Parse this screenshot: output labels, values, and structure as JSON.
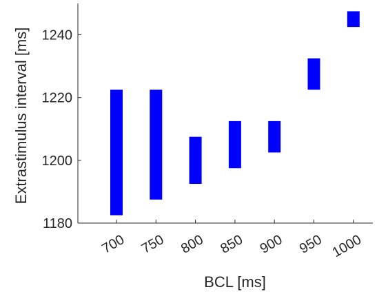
{
  "chart_data": {
    "type": "bar",
    "subtype": "floating-range",
    "title": "",
    "xlabel": "BCL [ms]",
    "ylabel": "Extrastimulus interval [ms]",
    "categories": [
      "700",
      "750",
      "800",
      "850",
      "900",
      "950",
      "1000"
    ],
    "ranges": [
      {
        "low": 1182.5,
        "high": 1222.5
      },
      {
        "low": 1187.5,
        "high": 1222.5
      },
      {
        "low": 1192.5,
        "high": 1207.5
      },
      {
        "low": 1197.5,
        "high": 1212.5
      },
      {
        "low": 1202.5,
        "high": 1212.5
      },
      {
        "low": 1222.5,
        "high": 1232.5
      },
      {
        "low": 1242.5,
        "high": 1247.5
      }
    ],
    "ylim": [
      1180,
      1250
    ],
    "yticks": [
      "1180",
      "1200",
      "1220",
      "1240"
    ],
    "grid": false,
    "legend": "none",
    "bar_color": "#0000ff",
    "axis_color": "#262626"
  }
}
